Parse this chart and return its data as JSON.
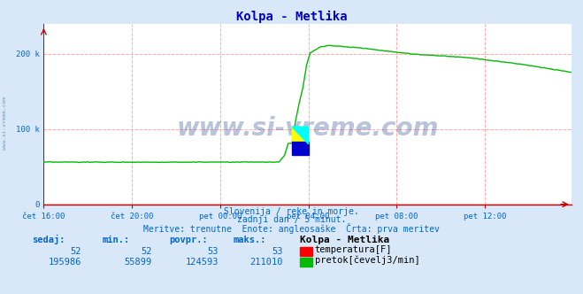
{
  "title": "Kolpa - Metlika",
  "title_color": "#0000cc",
  "bg_color": "#d8e8f8",
  "plot_bg_color": "#ffffff",
  "grid_color": "#ffaaaa",
  "axis_color": "#cc0000",
  "text_color": "#0066cc",
  "xlabel_ticks": [
    "čet 16:00",
    "čet 20:00",
    "pet 00:00",
    "pet 04:00",
    "pet 08:00",
    "pet 12:00"
  ],
  "ytick_labels": [
    "0",
    "100 k",
    "200 k"
  ],
  "ylim": [
    0,
    240000
  ],
  "xlim": [
    0,
    287
  ],
  "n_points": 288,
  "temp_color": "#ff0000",
  "flow_color": "#00bb00",
  "watermark": "www.si-vreme.com",
  "watermark_color": "#1a3a8a",
  "subtitle1": "Slovenija / reke in morje.",
  "subtitle2": "zadnji dan / 5 minut.",
  "subtitle3": "Meritve: trenutne  Enote: angleosaške  Črta: prva meritev",
  "footer_headers": [
    "sedaj:",
    "min.:",
    "povpr.:",
    "maks.:"
  ],
  "footer_temp": [
    52,
    52,
    53,
    53
  ],
  "footer_flow": [
    195986,
    55899,
    124593,
    211010
  ],
  "footer_station": "Kolpa - Metlika",
  "temp_label": "temperatura[F]",
  "flow_label": "pretok[čevelj3/min]",
  "tick_x_positions": [
    0,
    48,
    96,
    144,
    192,
    240
  ],
  "sidebar_text": "www.si-vreme.com"
}
